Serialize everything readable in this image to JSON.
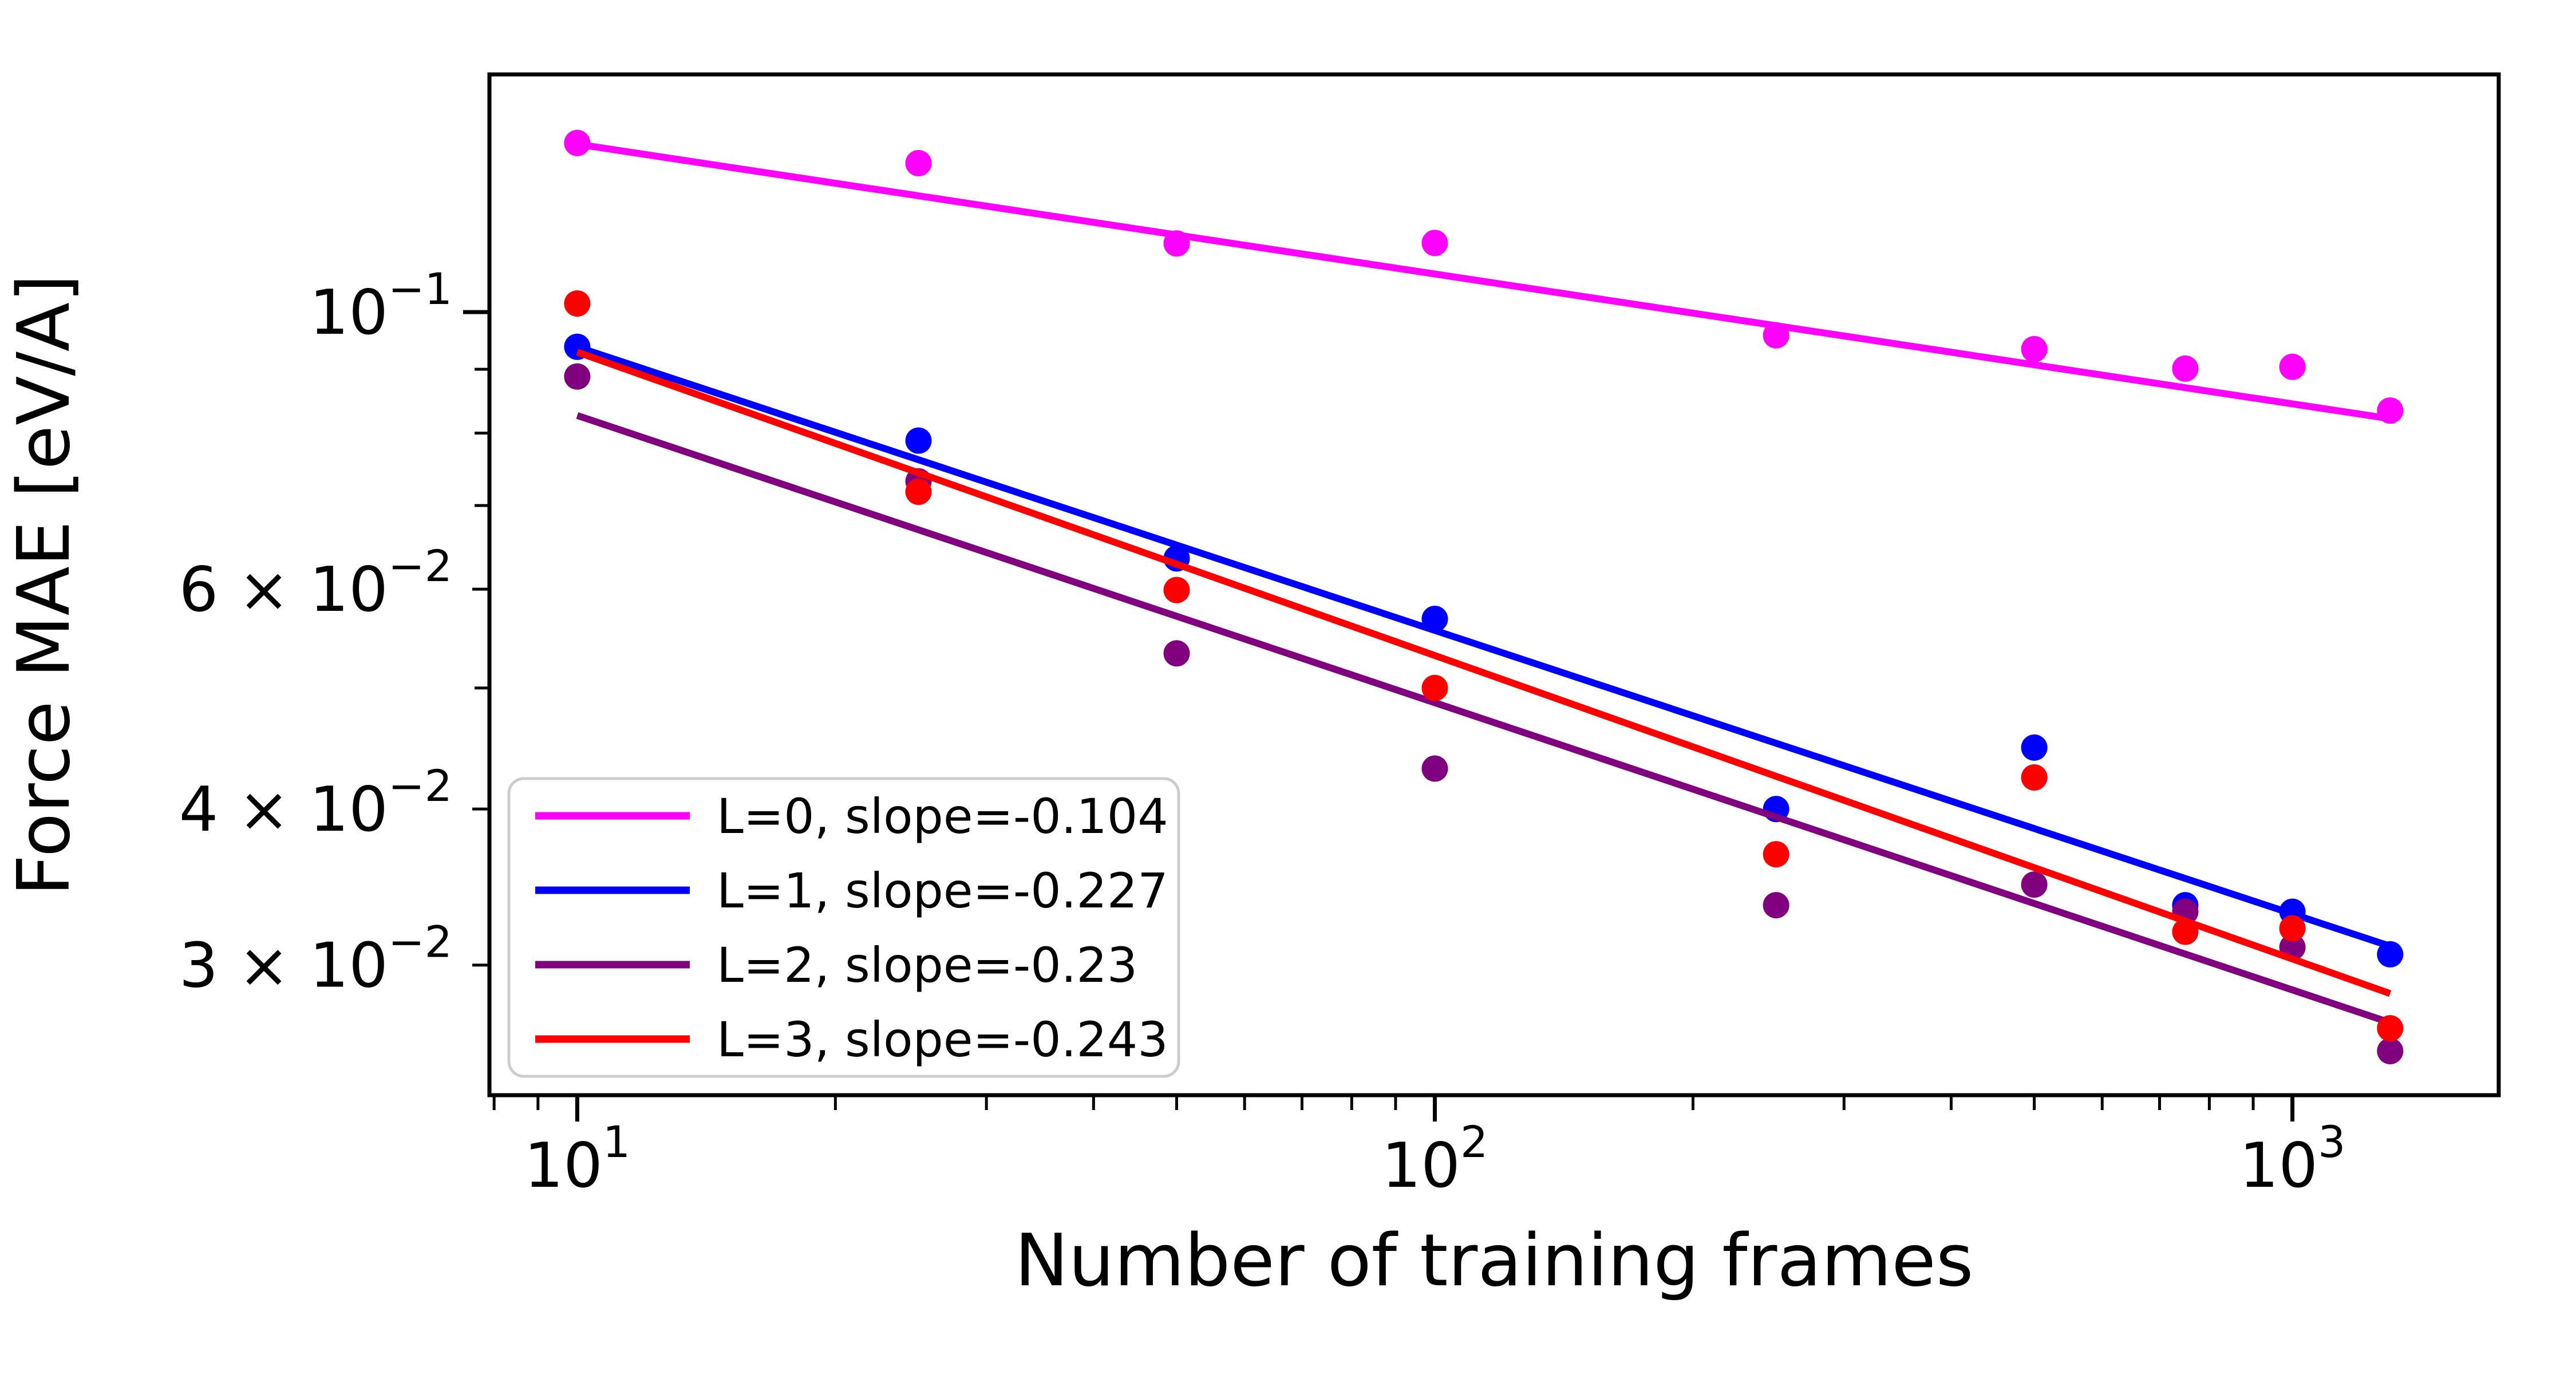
{
  "chart_data": {
    "type": "scatter",
    "title": "",
    "xlabel": "Number of training frames",
    "ylabel": "Force MAE [eV/A]",
    "x_scale": "log",
    "y_scale": "log",
    "xlim": [
      7.9,
      1740
    ],
    "ylim": [
      0.0236,
      0.155
    ],
    "grid": false,
    "legend_position": "lower left",
    "x_ticks": {
      "major_labeled": [
        {
          "value": 10,
          "base": "10",
          "exp": "1"
        },
        {
          "value": 100,
          "base": "10",
          "exp": "2"
        },
        {
          "value": 1000,
          "base": "10",
          "exp": "3"
        }
      ],
      "minor": [
        8,
        9,
        20,
        30,
        40,
        50,
        60,
        70,
        80,
        90,
        200,
        300,
        400,
        500,
        600,
        700,
        800,
        900
      ]
    },
    "y_ticks": {
      "major_labeled": [
        {
          "value": 0.1,
          "base": "10",
          "exp": "−1"
        },
        {
          "value": 0.06,
          "base": "6 × 10",
          "exp": "−2"
        },
        {
          "value": 0.04,
          "base": "4 × 10",
          "exp": "−2"
        },
        {
          "value": 0.03,
          "base": "3 × 10",
          "exp": "−2"
        }
      ],
      "minor": [
        0.05,
        0.07,
        0.08,
        0.09
      ]
    },
    "categories_x": [
      10,
      25,
      50,
      100,
      250,
      500,
      750,
      1000,
      1300
    ],
    "series": [
      {
        "name": "L0",
        "label": "L=0, slope=-0.104",
        "color": "#FF00FF",
        "marker": "circle",
        "x": [
          10,
          25,
          50,
          100,
          250,
          500,
          750,
          1000,
          1300
        ],
        "y": [
          0.1366,
          0.1316,
          0.1135,
          0.1136,
          0.0958,
          0.0934,
          0.0901,
          0.0904,
          0.0834
        ],
        "fit": {
          "slope": -0.104,
          "intercept_log10": -0.7615,
          "x_start": 10,
          "x_end": 1300
        }
      },
      {
        "name": "L1",
        "label": "L=1, slope=-0.227",
        "color": "#0000FF",
        "marker": "circle",
        "x": [
          10,
          25,
          50,
          100,
          250,
          500,
          750,
          1000,
          1300
        ],
        "y": [
          0.0938,
          0.0789,
          0.0635,
          0.0568,
          0.04,
          0.0448,
          0.0335,
          0.0331,
          0.0306
        ],
        "fit": {
          "slope": -0.227,
          "intercept_log10": -0.8009,
          "x_start": 10,
          "x_end": 1300
        }
      },
      {
        "name": "L2",
        "label": "L=2, slope=-0.23",
        "color": "#800080",
        "marker": "circle",
        "x": [
          10,
          25,
          50,
          100,
          250,
          500,
          750,
          1000,
          1300
        ],
        "y": [
          0.0888,
          0.0732,
          0.0533,
          0.0431,
          0.0335,
          0.0348,
          0.0331,
          0.031,
          0.0256
        ],
        "fit": {
          "slope": -0.23,
          "intercept_log10": -0.8528,
          "x_start": 10,
          "x_end": 1300
        }
      },
      {
        "name": "L3",
        "label": "L=3, slope=-0.243",
        "color": "#FF0000",
        "marker": "circle",
        "x": [
          10,
          25,
          50,
          100,
          250,
          500,
          750,
          1000,
          1300
        ],
        "y": [
          0.1016,
          0.0718,
          0.0599,
          0.05,
          0.0368,
          0.0424,
          0.0319,
          0.0321,
          0.0267
        ],
        "fit": {
          "slope": -0.243,
          "intercept_log10": -0.789,
          "x_start": 10,
          "x_end": 1300
        }
      }
    ],
    "style": {
      "marker_radius": 23,
      "line_width": 12,
      "spine_color": "#000000",
      "legend_border_color": "#CCCCCC",
      "text_color": "#000000"
    }
  }
}
